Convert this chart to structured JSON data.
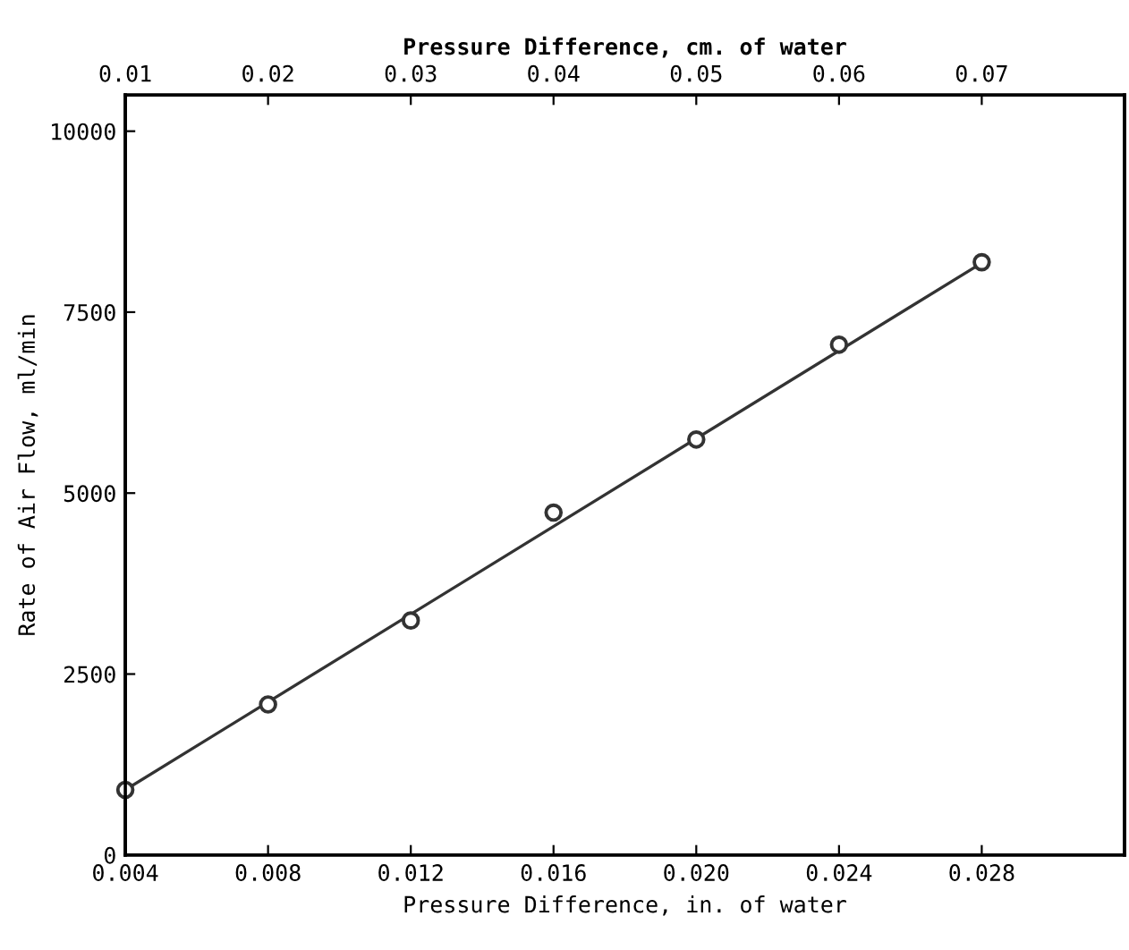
{
  "chart_data": {
    "type": "scatter",
    "xlabel": "Pressure Difference, in. of water",
    "x2label": "Pressure Difference, cm. of water",
    "ylabel": "Rate of Air Flow, ml/min",
    "x": [
      0.004,
      0.008,
      0.012,
      0.016,
      0.02,
      0.024,
      0.028
    ],
    "series": [
      {
        "color": "#333333",
        "marker": "circle",
        "values": [
          900,
          2080,
          3240,
          4730,
          5740,
          7050,
          8190
        ]
      },
      {
        "type": "line",
        "color": "#333333",
        "marker": "none",
        "line_style": "solid",
        "x": [
          0.004,
          0.028
        ],
        "values": [
          900,
          8180
        ]
      }
    ],
    "xlim": [
      0.004,
      0.032
    ],
    "xticks": [
      {
        "value": 0.004,
        "label": "0.004"
      },
      {
        "value": 0.008,
        "label": "0.008"
      },
      {
        "value": 0.012,
        "label": "0.012"
      },
      {
        "value": 0.016,
        "label": "0.016"
      },
      {
        "value": 0.02,
        "label": "0.020"
      },
      {
        "value": 0.024,
        "label": "0.024"
      },
      {
        "value": 0.028,
        "label": "0.028"
      }
    ],
    "x2lim": [
      0.01,
      0.08
    ],
    "x2ticks": [
      0.01,
      0.02,
      0.03,
      0.04,
      0.05,
      0.06,
      0.07
    ],
    "ylim": [
      0,
      10500
    ],
    "yticks": [
      0,
      2500,
      5000,
      7500,
      10000
    ],
    "grid": false
  }
}
